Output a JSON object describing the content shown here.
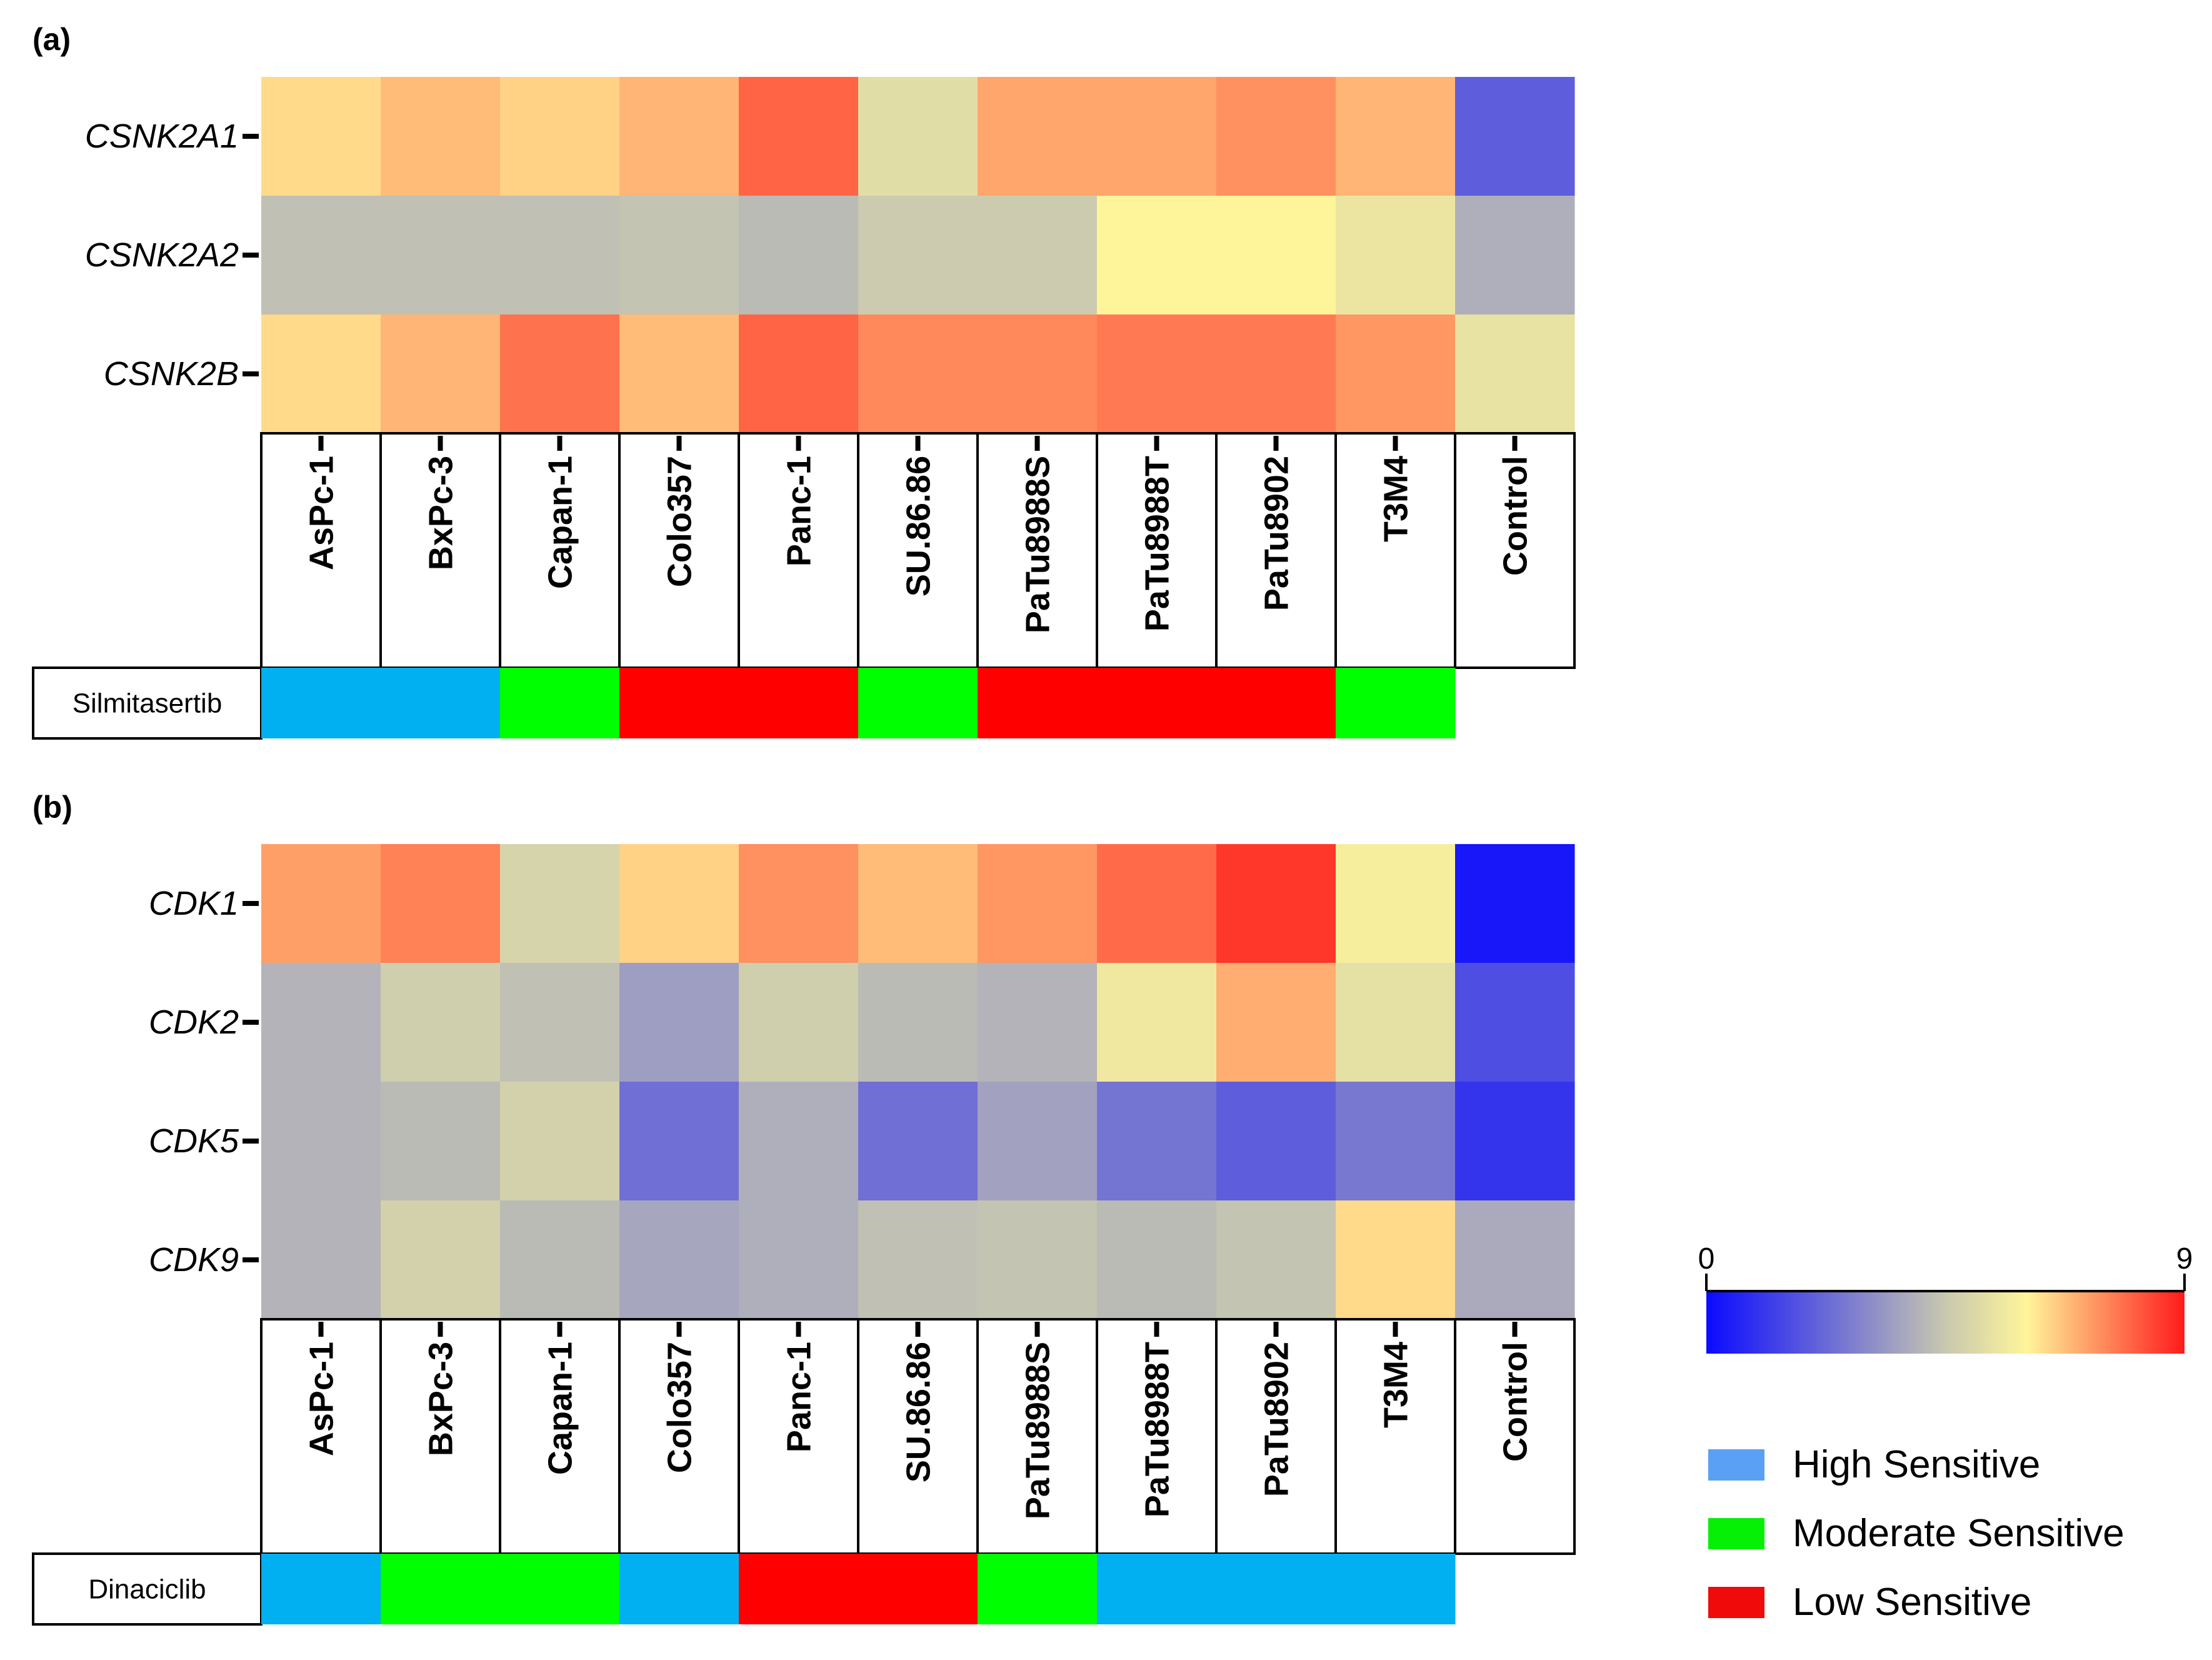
{
  "chart_data": [
    {
      "type": "heatmap",
      "panel_label": "(a)",
      "rows": [
        "CSNK2A1",
        "CSNK2A2",
        "CSNK2B"
      ],
      "columns": [
        "AsPc-1",
        "BxPc-3",
        "Capan-1",
        "Colo357",
        "Panc-1",
        "SU.86.86",
        "PaTu8988S",
        "PaTu8988T",
        "PaTu8902",
        "T3M4",
        "Control"
      ],
      "values": [
        [
          6.4,
          6.8,
          6.5,
          6.9,
          8.0,
          5.2,
          7.1,
          7.1,
          7.4,
          6.9,
          2.0
        ],
        [
          4.3,
          4.3,
          4.3,
          4.4,
          4.2,
          4.6,
          4.6,
          6.0,
          6.0,
          5.5,
          3.9
        ],
        [
          6.4,
          6.9,
          7.8,
          6.8,
          8.0,
          7.5,
          7.5,
          7.7,
          7.7,
          7.3,
          5.4
        ]
      ],
      "drug": "Silmitasertib",
      "sensitivity": [
        "High",
        "High",
        "Moderate",
        "Low",
        "Low",
        "Moderate",
        "Low",
        "Low",
        "Low",
        "Moderate",
        null
      ]
    },
    {
      "type": "heatmap",
      "panel_label": "(b)",
      "rows": [
        "CDK1",
        "CDK2",
        "CDK5",
        "CDK9"
      ],
      "columns": [
        "AsPc-1",
        "BxPc-3",
        "Capan-1",
        "Colo357",
        "Panc-1",
        "SU.86.86",
        "PaTu8988S",
        "PaTu8988T",
        "PaTu8902",
        "T3M4",
        "Control"
      ],
      "values": [
        [
          7.2,
          7.6,
          4.9,
          6.5,
          7.4,
          6.8,
          7.3,
          7.9,
          8.6,
          5.8,
          0.3
        ],
        [
          4.0,
          4.7,
          4.3,
          3.5,
          4.7,
          4.2,
          4.0,
          5.6,
          7.0,
          5.3,
          1.6
        ],
        [
          4.0,
          4.2,
          4.8,
          2.4,
          3.9,
          2.4,
          3.6,
          2.5,
          2.0,
          2.6,
          1.0
        ],
        [
          4.0,
          4.8,
          4.2,
          3.7,
          3.9,
          4.3,
          4.4,
          4.2,
          4.4,
          6.4,
          3.8
        ]
      ],
      "drug": "Dinaciclib",
      "sensitivity": [
        "High",
        "Moderate",
        "Moderate",
        "High",
        "Low",
        "Low",
        "Moderate",
        "High",
        "High",
        "High",
        null
      ]
    }
  ],
  "color_scale": {
    "min_label": "0",
    "max_label": "9",
    "min": 0,
    "max": 9,
    "stops": [
      "#0a0aff",
      "#c8c8b0",
      "#fff59a",
      "#ff1a1a"
    ]
  },
  "legend": [
    {
      "key": "High",
      "label": "High Sensitive",
      "color": "#5aa0f5"
    },
    {
      "key": "Moderate",
      "label": "Moderate Sensitive",
      "color": "#05f005"
    },
    {
      "key": "Low",
      "label": "Low Sensitive",
      "color": "#f00a0a"
    }
  ],
  "sensitivity_bar_colors": {
    "High": "#00b0f0",
    "Moderate": "#00ff00",
    "Low": "#ff0000"
  }
}
